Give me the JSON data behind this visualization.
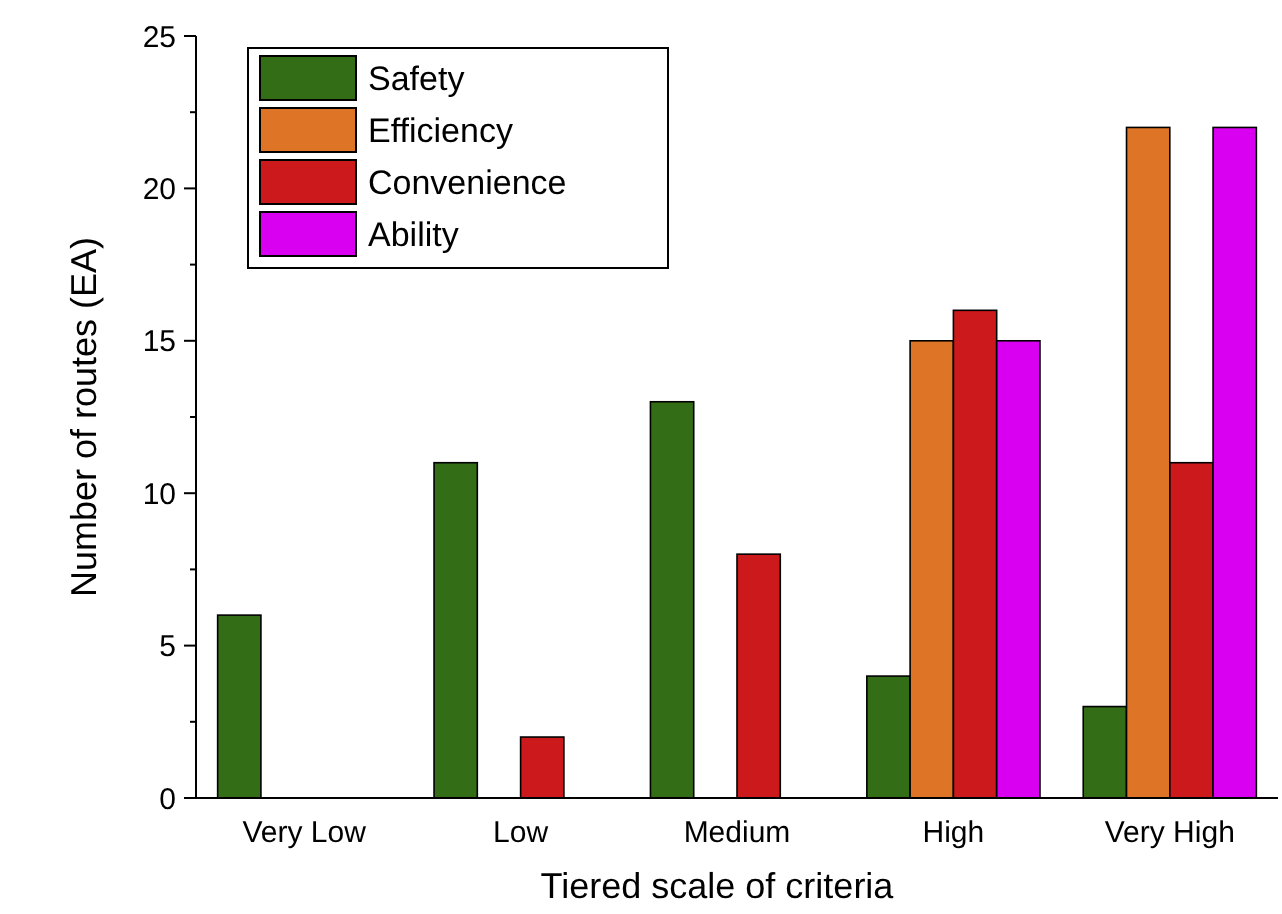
{
  "chart_data": {
    "type": "bar",
    "xlabel": "Tiered scale of criteria",
    "ylabel": "Number of routes (EA)",
    "categories": [
      "Very Low",
      "Low",
      "Medium",
      "High",
      "Very High"
    ],
    "series": [
      {
        "name": "Safety",
        "color": "#336e16",
        "values": [
          6,
          11,
          13,
          4,
          3
        ]
      },
      {
        "name": "Efficiency",
        "color": "#de7526",
        "values": [
          0,
          0,
          0,
          15,
          22
        ]
      },
      {
        "name": "Convenience",
        "color": "#cc1a1c",
        "values": [
          0,
          2,
          8,
          16,
          11
        ]
      },
      {
        "name": "Ability",
        "color": "#d900f2",
        "values": [
          0,
          0,
          0,
          15,
          22
        ]
      }
    ],
    "ylim": [
      0,
      25
    ],
    "yticks": [
      0,
      {
        "value": 2.5,
        "label": null
      },
      5,
      {
        "value": 7.5,
        "label": null
      },
      10,
      {
        "value": 12.5,
        "label": null
      },
      15,
      {
        "value": 17.5,
        "label": null
      },
      20,
      {
        "value": 22.5,
        "label": null
      },
      25
    ],
    "grid": false,
    "legend": "top left"
  }
}
